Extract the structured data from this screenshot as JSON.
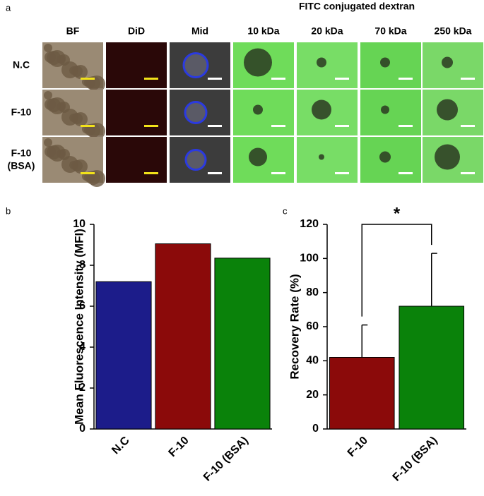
{
  "panel_a": {
    "label": "a",
    "group_title": "FITC conjugated dextran",
    "columns": [
      "BF",
      "DiD",
      "Mid",
      "10 kDa",
      "20 kDa",
      "70 kDa",
      "250 kDa"
    ],
    "rows": [
      "N.C",
      "F-10",
      "F-10 (BSA)"
    ]
  },
  "chart_data": [
    {
      "type": "bar",
      "label": "b",
      "ylabel": "Mean Fluorescence Intensity (MFI)",
      "categories": [
        "N.C",
        "F-10",
        "F-10 (BSA)"
      ],
      "values": [
        7.2,
        9.05,
        8.35
      ],
      "colors": [
        "#1c1c8a",
        "#8b0a0a",
        "#0a820a"
      ],
      "ylim": [
        0,
        10
      ],
      "yticks": [
        0,
        2,
        4,
        6,
        8,
        10
      ]
    },
    {
      "type": "bar",
      "label": "c",
      "ylabel": "Recovery Rate (%)",
      "categories": [
        "F-10",
        "F-10 (BSA)"
      ],
      "values": [
        42,
        72
      ],
      "errors": [
        19,
        31
      ],
      "colors": [
        "#8b0a0a",
        "#0a820a"
      ],
      "ylim": [
        0,
        120
      ],
      "yticks": [
        0,
        20,
        40,
        60,
        80,
        100,
        120
      ],
      "annotation": "*"
    }
  ]
}
